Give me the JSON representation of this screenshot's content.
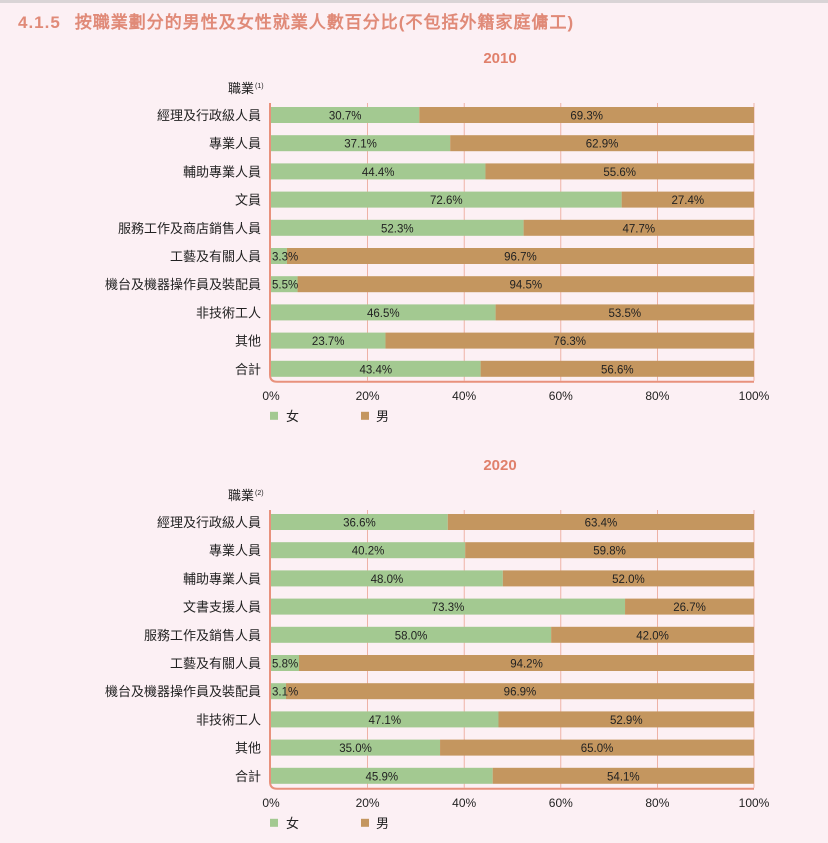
{
  "page": {
    "section_number": "4.1.5",
    "title": "按職業劃分的男性及女性就業人數百分比(不包括外籍家庭傭工)"
  },
  "colors": {
    "female": "#a3c991",
    "male": "#c4965f",
    "title": "#e0806b",
    "axis": "#e8917c",
    "background": "#fcf0f4"
  },
  "chart_data": [
    {
      "type": "bar",
      "orientation": "horizontal",
      "stacked": true,
      "title": "2010",
      "ylabel": "職業",
      "ylabel_note": "(1)",
      "xlim": [
        0,
        100
      ],
      "xticks": [
        "0%",
        "20%",
        "40%",
        "60%",
        "80%",
        "100%"
      ],
      "grid": true,
      "legend_position": "bottom-left",
      "categories": [
        "經理及行政級人員",
        "專業人員",
        "輔助專業人員",
        "文員",
        "服務工作及商店銷售人員",
        "工藝及有關人員",
        "機台及機器操作員及裝配員",
        "非技術工人",
        "其他",
        "合計"
      ],
      "series": [
        {
          "name": "女",
          "values": [
            30.7,
            37.1,
            44.4,
            72.6,
            52.3,
            3.3,
            5.5,
            46.5,
            23.7,
            43.4
          ],
          "labels": [
            "30.7%",
            "37.1%",
            "44.4%",
            "72.6%",
            "52.3%",
            "3.3%",
            "5.5%",
            "46.5%",
            "23.7%",
            "43.4%"
          ]
        },
        {
          "name": "男",
          "values": [
            69.3,
            62.9,
            55.6,
            27.4,
            47.7,
            96.7,
            94.5,
            53.5,
            76.3,
            56.6
          ],
          "labels": [
            "69.3%",
            "62.9%",
            "55.6%",
            "27.4%",
            "47.7%",
            "96.7%",
            "94.5%",
            "53.5%",
            "76.3%",
            "56.6%"
          ]
        }
      ]
    },
    {
      "type": "bar",
      "orientation": "horizontal",
      "stacked": true,
      "title": "2020",
      "ylabel": "職業",
      "ylabel_note": "(2)",
      "xlim": [
        0,
        100
      ],
      "xticks": [
        "0%",
        "20%",
        "40%",
        "60%",
        "80%",
        "100%"
      ],
      "grid": true,
      "legend_position": "bottom-left",
      "categories": [
        "經理及行政級人員",
        "專業人員",
        "輔助專業人員",
        "文書支援人員",
        "服務工作及銷售人員",
        "工藝及有關人員",
        "機台及機器操作員及裝配員",
        "非技術工人",
        "其他",
        "合計"
      ],
      "series": [
        {
          "name": "女",
          "values": [
            36.6,
            40.2,
            48.0,
            73.3,
            58.0,
            5.8,
            3.1,
            47.1,
            35.0,
            45.9
          ],
          "labels": [
            "36.6%",
            "40.2%",
            "48.0%",
            "73.3%",
            "58.0%",
            "5.8%",
            "3.1%",
            "47.1%",
            "35.0%",
            "45.9%"
          ]
        },
        {
          "name": "男",
          "values": [
            63.4,
            59.8,
            52.0,
            26.7,
            42.0,
            94.2,
            96.9,
            52.9,
            65.0,
            54.1
          ],
          "labels": [
            "63.4%",
            "59.8%",
            "52.0%",
            "26.7%",
            "42.0%",
            "94.2%",
            "96.9%",
            "52.9%",
            "65.0%",
            "54.1%"
          ]
        }
      ]
    }
  ]
}
